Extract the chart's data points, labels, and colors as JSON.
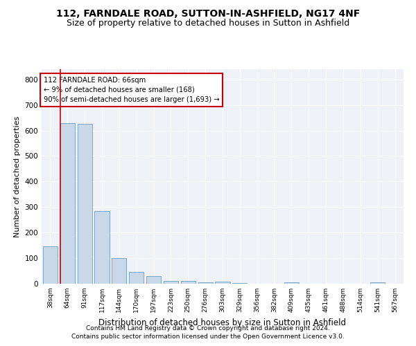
{
  "title1": "112, FARNDALE ROAD, SUTTON-IN-ASHFIELD, NG17 4NF",
  "title2": "Size of property relative to detached houses in Sutton in Ashfield",
  "xlabel": "Distribution of detached houses by size in Sutton in Ashfield",
  "ylabel": "Number of detached properties",
  "footnote1": "Contains HM Land Registry data © Crown copyright and database right 2024.",
  "footnote2": "Contains public sector information licensed under the Open Government Licence v3.0.",
  "bar_labels": [
    "38sqm",
    "64sqm",
    "91sqm",
    "117sqm",
    "144sqm",
    "170sqm",
    "197sqm",
    "223sqm",
    "250sqm",
    "276sqm",
    "303sqm",
    "329sqm",
    "356sqm",
    "382sqm",
    "409sqm",
    "435sqm",
    "461sqm",
    "488sqm",
    "514sqm",
    "541sqm",
    "567sqm"
  ],
  "bar_values": [
    145,
    630,
    625,
    285,
    100,
    47,
    30,
    10,
    12,
    5,
    8,
    2,
    0,
    0,
    5,
    0,
    0,
    0,
    0,
    5,
    0
  ],
  "bar_color": "#c8d8e8",
  "bar_edge_color": "#6a9abf",
  "annotation_text": "112 FARNDALE ROAD: 66sqm\n← 9% of detached houses are smaller (168)\n90% of semi-detached houses are larger (1,693) →",
  "annotation_box_color": "#ffffff",
  "annotation_box_edge_color": "#cc0000",
  "red_line_x": 0.575,
  "ylim": [
    0,
    840
  ],
  "yticks": [
    0,
    100,
    200,
    300,
    400,
    500,
    600,
    700,
    800
  ],
  "bg_color": "#eef2f7",
  "grid_color": "#ffffff",
  "title1_fontsize": 10,
  "title2_fontsize": 9,
  "xlabel_fontsize": 8.5,
  "ylabel_fontsize": 8,
  "footnote_fontsize": 6.5
}
